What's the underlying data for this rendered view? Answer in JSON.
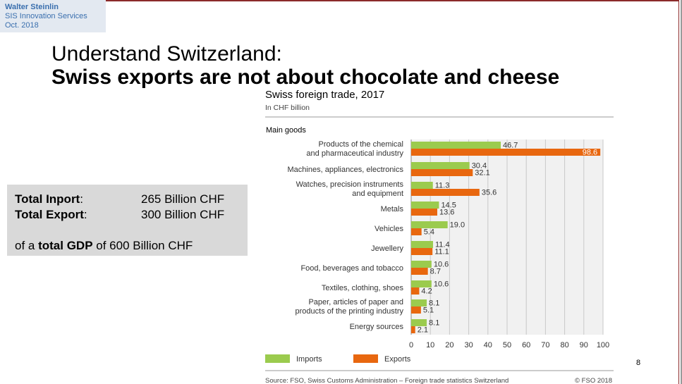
{
  "author": {
    "name": "Walter Steinlin",
    "org": "SIS Innovation Services",
    "date": "Oct. 2018"
  },
  "title": {
    "line1": "Understand Switzerland:",
    "line2": "Swiss exports are not about chocolate and cheese"
  },
  "summary": {
    "import_label": "Total Inport",
    "import_colon": ":",
    "import_value": "265 Billion CHF",
    "export_label": "Total Export",
    "export_colon": ":",
    "export_value": "300 Billion CHF",
    "gdp_prefix": "of a ",
    "gdp_bold": "total GDP",
    "gdp_suffix": " of 600 Billion CHF"
  },
  "page_number": "8",
  "colors": {
    "imports": "#9bcb4e",
    "exports": "#e8670f",
    "grid": "#c9c9c9",
    "plot_bg": "#f1f1f1"
  },
  "chart_data": {
    "type": "bar",
    "orientation": "horizontal",
    "title": "Swiss foreign trade, 2017",
    "subtitle": "In CHF billion",
    "section_label": "Main goods",
    "categories": [
      [
        "Products of the chemical",
        "and pharmaceutical industry"
      ],
      [
        "Machines, appliances, electronics"
      ],
      [
        "Watches, precision instruments",
        "and equipment"
      ],
      [
        "Metals"
      ],
      [
        "Vehicles"
      ],
      [
        "Jewellery"
      ],
      [
        "Food, beverages and tobacco"
      ],
      [
        "Textiles, clothing, shoes"
      ],
      [
        "Paper, articles of paper and",
        "products of the printing industry"
      ],
      [
        "Energy sources"
      ]
    ],
    "series": [
      {
        "name": "Imports",
        "values": [
          46.7,
          30.4,
          11.3,
          14.5,
          19.0,
          11.4,
          10.6,
          10.6,
          8.1,
          8.1
        ]
      },
      {
        "name": "Exports",
        "values": [
          98.6,
          32.1,
          35.6,
          13.6,
          5.4,
          11.1,
          8.7,
          4.2,
          5.1,
          2.1
        ]
      }
    ],
    "xlim": [
      0,
      100
    ],
    "xticks": [
      0,
      10,
      20,
      30,
      40,
      50,
      60,
      70,
      80,
      90,
      100
    ],
    "legend_position": "bottom",
    "grid": true,
    "source": "Source: FSO, Swiss Customs Administration – Foreign trade statistics Switzerland",
    "copyright": "© FSO 2018"
  }
}
